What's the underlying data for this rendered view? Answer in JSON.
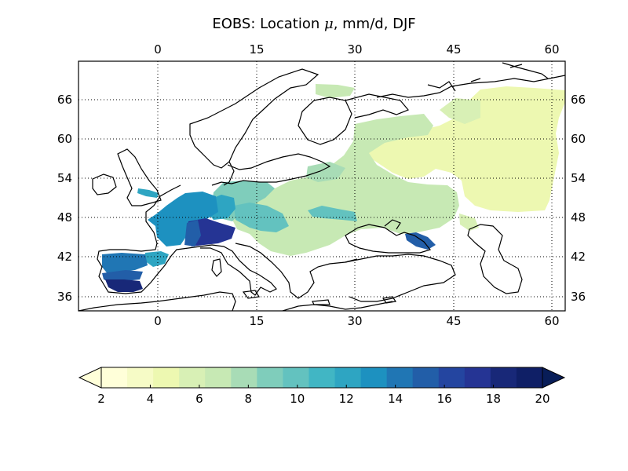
{
  "title_parts": {
    "prefix": "EOBS: Location ",
    "symbol": "μ",
    "suffix": ", mm/d, DJF"
  },
  "map": {
    "lon_ticks": [
      "0",
      "15",
      "30",
      "45",
      "60"
    ],
    "lat_ticks": [
      "66",
      "60",
      "54",
      "48",
      "42",
      "36"
    ],
    "lon_range": [
      -12,
      62
    ],
    "lat_range": [
      33,
      72
    ],
    "grid": "dotted"
  },
  "colorbar": {
    "ticks": [
      "2",
      "4",
      "6",
      "8",
      "10",
      "12",
      "14",
      "16",
      "18",
      "20"
    ],
    "range": [
      2,
      20
    ],
    "step": 1,
    "extend": "both",
    "colors": [
      "#ffffd9",
      "#f6fbc6",
      "#edf8b1",
      "#d8f0b5",
      "#c7e9b4",
      "#a8dcb6",
      "#7fcdbb",
      "#63c2bf",
      "#41b6c4",
      "#2ea5c2",
      "#1d91c0",
      "#2076b4",
      "#225ea8",
      "#2445a0",
      "#253494",
      "#182878",
      "#0f1f66"
    ],
    "under_color": "#ffffd9",
    "over_color": "#081d58"
  }
}
